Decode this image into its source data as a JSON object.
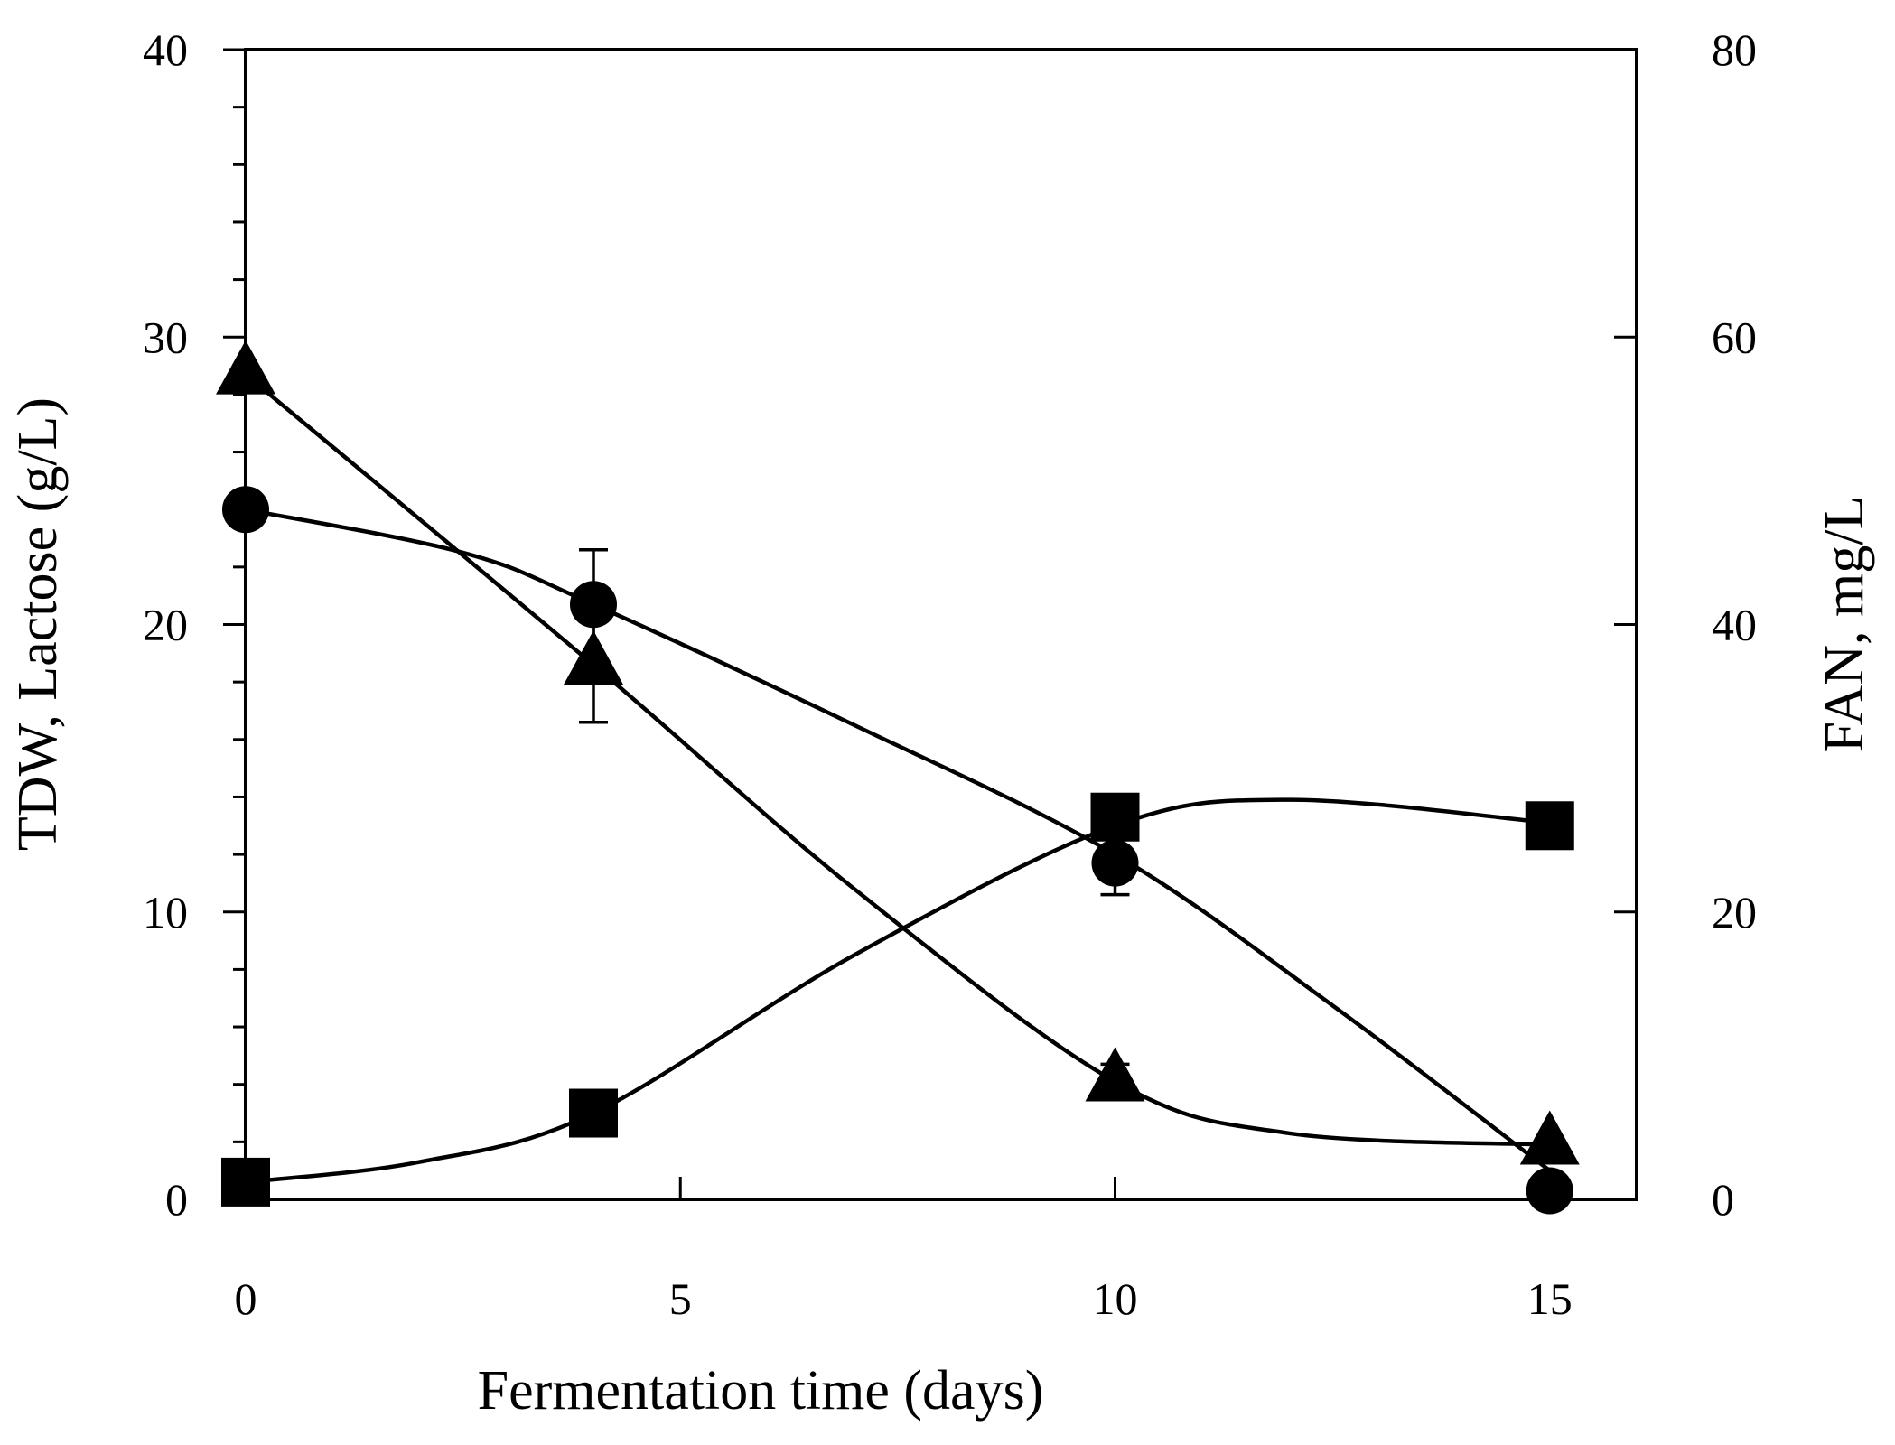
{
  "chart_data": {
    "type": "line",
    "title": "",
    "xlabel": "Fermentation time (days)",
    "ylabel_left": "TDW, Lactose (g/L)",
    "ylabel_right": "FAN, mg/L",
    "xlim": [
      0,
      16
    ],
    "ylim_left": [
      0,
      40
    ],
    "ylim_right": [
      0,
      80
    ],
    "x_ticks": [
      0,
      5,
      10,
      15
    ],
    "y_left_ticks": [
      0,
      10,
      20,
      30,
      40
    ],
    "y_right_ticks": [
      0,
      20,
      40,
      60,
      80
    ],
    "grid": false,
    "legend": "none",
    "series": [
      {
        "name": "TDW (square)",
        "marker": "square",
        "axis": "left",
        "x": [
          0,
          4,
          10,
          15
        ],
        "values": [
          0.6,
          3.0,
          13.3,
          13.0
        ],
        "errors": [
          0,
          0,
          0,
          0
        ],
        "curve": [
          [
            0,
            0.6
          ],
          [
            2,
            1.3
          ],
          [
            4,
            3.0
          ],
          [
            7,
            8.5
          ],
          [
            10,
            13.0
          ],
          [
            12,
            13.9
          ],
          [
            15,
            13.1
          ]
        ]
      },
      {
        "name": "Lactose (triangle)",
        "marker": "triangle",
        "axis": "left",
        "x": [
          0,
          4,
          10,
          15
        ],
        "values": [
          28.7,
          18.6,
          4.1,
          1.9
        ],
        "errors": [
          0,
          2.0,
          0.6,
          0
        ],
        "curve": [
          [
            0,
            28.7
          ],
          [
            4,
            18.6
          ],
          [
            7,
            10.8
          ],
          [
            10,
            4.1
          ],
          [
            12,
            2.3
          ],
          [
            15,
            1.9
          ]
        ]
      },
      {
        "name": "FAN (circle)",
        "marker": "circle",
        "axis": "right",
        "x": [
          0,
          4,
          10,
          15
        ],
        "values": [
          48.0,
          41.4,
          23.4,
          0.6
        ],
        "errors": [
          0,
          3.8,
          2.2,
          0
        ],
        "curve": [
          [
            0,
            48.0
          ],
          [
            2.5,
            45.0
          ],
          [
            4,
            41.4
          ],
          [
            7,
            33.0
          ],
          [
            10,
            24.0
          ],
          [
            12.5,
            13.5
          ],
          [
            15,
            2.0
          ]
        ]
      }
    ]
  }
}
